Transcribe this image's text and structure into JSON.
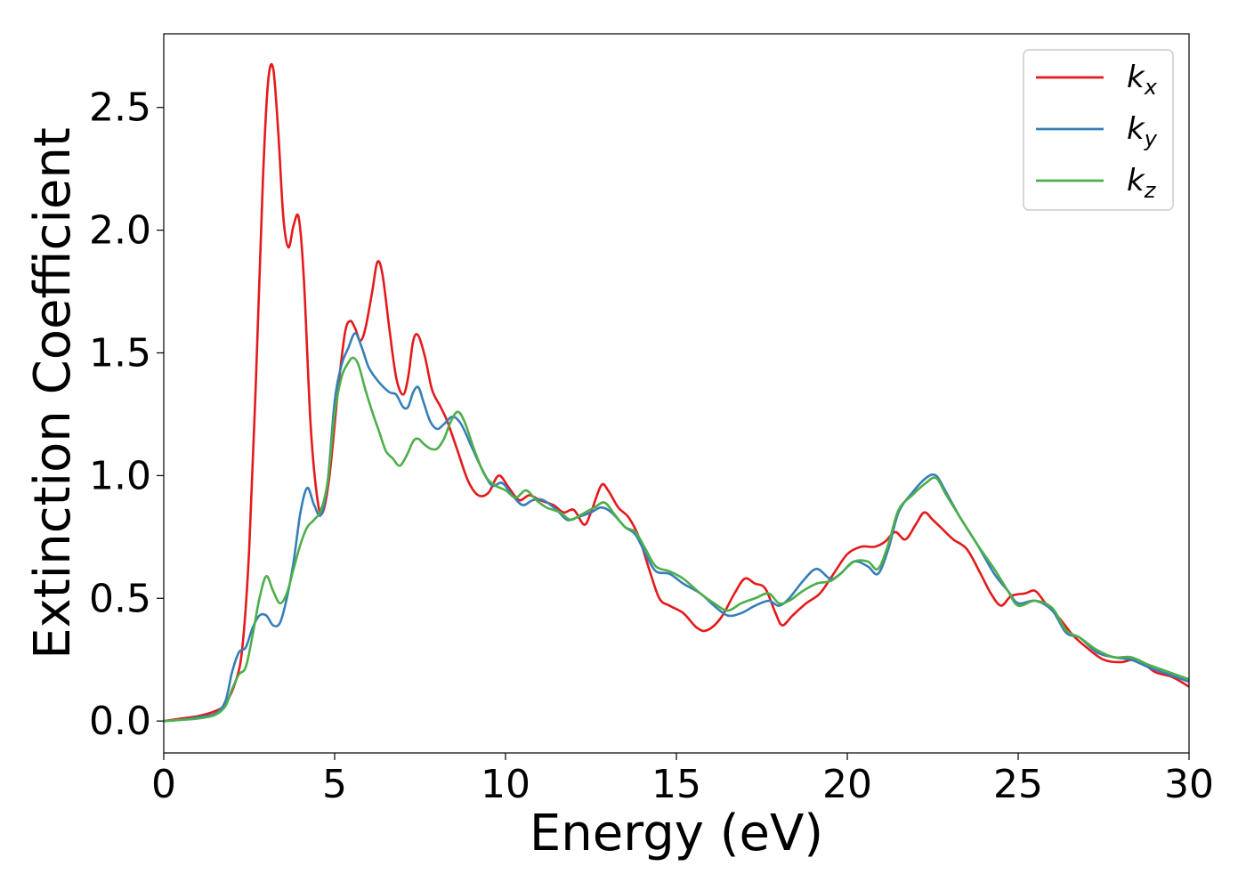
{
  "chart_data": {
    "type": "line",
    "xlabel": "Energy (eV)",
    "ylabel": "Extinction Coefficient",
    "xlim": [
      0,
      30
    ],
    "ylim": [
      -0.13,
      2.8
    ],
    "xticks": [
      0,
      5,
      10,
      15,
      20,
      25,
      30
    ],
    "xtick_labels": [
      "0",
      "5",
      "10",
      "15",
      "20",
      "25",
      "30"
    ],
    "yticks": [
      0.0,
      0.5,
      1.0,
      1.5,
      2.0,
      2.5
    ],
    "ytick_labels": [
      "0.0",
      "0.5",
      "1.0",
      "1.5",
      "2.0",
      "2.5"
    ],
    "grid": false,
    "legend_position": "top-right",
    "series": [
      {
        "name": "k_x",
        "label_main": "k",
        "label_sub": "x",
        "color": "#e41a1c",
        "points": [
          [
            0,
            0
          ],
          [
            0.5,
            0.01
          ],
          [
            1,
            0.02
          ],
          [
            1.5,
            0.04
          ],
          [
            1.8,
            0.07
          ],
          [
            2.1,
            0.16
          ],
          [
            2.3,
            0.3
          ],
          [
            2.5,
            0.7
          ],
          [
            2.7,
            1.4
          ],
          [
            2.9,
            2.2
          ],
          [
            3.05,
            2.6
          ],
          [
            3.2,
            2.66
          ],
          [
            3.35,
            2.4
          ],
          [
            3.5,
            2.05
          ],
          [
            3.65,
            1.93
          ],
          [
            3.8,
            2.02
          ],
          [
            3.95,
            2.05
          ],
          [
            4.1,
            1.8
          ],
          [
            4.3,
            1.2
          ],
          [
            4.5,
            0.9
          ],
          [
            4.65,
            0.85
          ],
          [
            4.85,
            1.0
          ],
          [
            5.1,
            1.35
          ],
          [
            5.3,
            1.58
          ],
          [
            5.45,
            1.63
          ],
          [
            5.6,
            1.6
          ],
          [
            5.75,
            1.55
          ],
          [
            5.9,
            1.6
          ],
          [
            6.1,
            1.75
          ],
          [
            6.25,
            1.87
          ],
          [
            6.4,
            1.82
          ],
          [
            6.6,
            1.6
          ],
          [
            6.8,
            1.4
          ],
          [
            7.0,
            1.33
          ],
          [
            7.15,
            1.4
          ],
          [
            7.3,
            1.55
          ],
          [
            7.45,
            1.57
          ],
          [
            7.65,
            1.48
          ],
          [
            7.85,
            1.35
          ],
          [
            8.1,
            1.28
          ],
          [
            8.3,
            1.22
          ],
          [
            8.6,
            1.1
          ],
          [
            8.9,
            0.98
          ],
          [
            9.2,
            0.92
          ],
          [
            9.5,
            0.93
          ],
          [
            9.8,
            1.0
          ],
          [
            10.1,
            0.95
          ],
          [
            10.4,
            0.9
          ],
          [
            10.7,
            0.92
          ],
          [
            11.0,
            0.9
          ],
          [
            11.4,
            0.88
          ],
          [
            11.7,
            0.85
          ],
          [
            12.0,
            0.86
          ],
          [
            12.3,
            0.8
          ],
          [
            12.5,
            0.85
          ],
          [
            12.8,
            0.96
          ],
          [
            13.0,
            0.94
          ],
          [
            13.3,
            0.87
          ],
          [
            13.6,
            0.83
          ],
          [
            13.9,
            0.75
          ],
          [
            14.2,
            0.62
          ],
          [
            14.5,
            0.5
          ],
          [
            14.8,
            0.47
          ],
          [
            15.2,
            0.44
          ],
          [
            15.6,
            0.38
          ],
          [
            15.9,
            0.37
          ],
          [
            16.3,
            0.42
          ],
          [
            16.7,
            0.52
          ],
          [
            17.0,
            0.58
          ],
          [
            17.3,
            0.56
          ],
          [
            17.6,
            0.54
          ],
          [
            17.9,
            0.44
          ],
          [
            18.1,
            0.39
          ],
          [
            18.4,
            0.43
          ],
          [
            18.8,
            0.48
          ],
          [
            19.2,
            0.52
          ],
          [
            19.6,
            0.6
          ],
          [
            20.0,
            0.68
          ],
          [
            20.4,
            0.71
          ],
          [
            20.8,
            0.71
          ],
          [
            21.1,
            0.73
          ],
          [
            21.4,
            0.77
          ],
          [
            21.7,
            0.74
          ],
          [
            22.0,
            0.8
          ],
          [
            22.25,
            0.85
          ],
          [
            22.5,
            0.82
          ],
          [
            22.8,
            0.78
          ],
          [
            23.1,
            0.74
          ],
          [
            23.5,
            0.7
          ],
          [
            23.9,
            0.6
          ],
          [
            24.2,
            0.52
          ],
          [
            24.5,
            0.47
          ],
          [
            24.8,
            0.51
          ],
          [
            25.2,
            0.52
          ],
          [
            25.5,
            0.53
          ],
          [
            25.8,
            0.48
          ],
          [
            26.2,
            0.42
          ],
          [
            26.6,
            0.35
          ],
          [
            27.0,
            0.3
          ],
          [
            27.5,
            0.25
          ],
          [
            28.0,
            0.24
          ],
          [
            28.5,
            0.25
          ],
          [
            29.0,
            0.2
          ],
          [
            29.5,
            0.18
          ],
          [
            30.0,
            0.14
          ]
        ]
      },
      {
        "name": "k_y",
        "label_main": "k",
        "label_sub": "y",
        "color": "#377eb8",
        "points": [
          [
            0,
            0
          ],
          [
            0.5,
            0.005
          ],
          [
            1,
            0.015
          ],
          [
            1.5,
            0.03
          ],
          [
            1.8,
            0.08
          ],
          [
            2.0,
            0.2
          ],
          [
            2.2,
            0.28
          ],
          [
            2.4,
            0.3
          ],
          [
            2.6,
            0.38
          ],
          [
            2.8,
            0.43
          ],
          [
            3.0,
            0.43
          ],
          [
            3.2,
            0.39
          ],
          [
            3.4,
            0.4
          ],
          [
            3.6,
            0.5
          ],
          [
            3.8,
            0.65
          ],
          [
            4.0,
            0.85
          ],
          [
            4.2,
            0.95
          ],
          [
            4.4,
            0.88
          ],
          [
            4.6,
            0.84
          ],
          [
            4.8,
            0.98
          ],
          [
            5.0,
            1.3
          ],
          [
            5.2,
            1.45
          ],
          [
            5.4,
            1.52
          ],
          [
            5.6,
            1.58
          ],
          [
            5.8,
            1.52
          ],
          [
            6.0,
            1.44
          ],
          [
            6.3,
            1.38
          ],
          [
            6.6,
            1.34
          ],
          [
            6.8,
            1.33
          ],
          [
            7.0,
            1.28
          ],
          [
            7.15,
            1.28
          ],
          [
            7.3,
            1.34
          ],
          [
            7.45,
            1.36
          ],
          [
            7.6,
            1.3
          ],
          [
            7.8,
            1.22
          ],
          [
            8.0,
            1.19
          ],
          [
            8.2,
            1.21
          ],
          [
            8.45,
            1.24
          ],
          [
            8.7,
            1.21
          ],
          [
            9.0,
            1.12
          ],
          [
            9.3,
            1.03
          ],
          [
            9.6,
            0.96
          ],
          [
            9.9,
            0.97
          ],
          [
            10.2,
            0.92
          ],
          [
            10.5,
            0.88
          ],
          [
            10.8,
            0.9
          ],
          [
            11.1,
            0.9
          ],
          [
            11.5,
            0.86
          ],
          [
            11.8,
            0.82
          ],
          [
            12.1,
            0.83
          ],
          [
            12.5,
            0.85
          ],
          [
            12.8,
            0.87
          ],
          [
            13.1,
            0.85
          ],
          [
            13.5,
            0.79
          ],
          [
            13.8,
            0.76
          ],
          [
            14.1,
            0.68
          ],
          [
            14.4,
            0.61
          ],
          [
            14.8,
            0.6
          ],
          [
            15.2,
            0.56
          ],
          [
            15.7,
            0.52
          ],
          [
            16.1,
            0.47
          ],
          [
            16.5,
            0.43
          ],
          [
            16.9,
            0.44
          ],
          [
            17.3,
            0.47
          ],
          [
            17.7,
            0.49
          ],
          [
            18.0,
            0.47
          ],
          [
            18.3,
            0.5
          ],
          [
            18.7,
            0.57
          ],
          [
            19.1,
            0.62
          ],
          [
            19.5,
            0.58
          ],
          [
            19.8,
            0.6
          ],
          [
            20.2,
            0.65
          ],
          [
            20.6,
            0.63
          ],
          [
            20.9,
            0.6
          ],
          [
            21.2,
            0.7
          ],
          [
            21.5,
            0.85
          ],
          [
            21.9,
            0.93
          ],
          [
            22.3,
            0.99
          ],
          [
            22.6,
            1.0
          ],
          [
            22.9,
            0.93
          ],
          [
            23.3,
            0.83
          ],
          [
            23.8,
            0.72
          ],
          [
            24.3,
            0.6
          ],
          [
            24.7,
            0.53
          ],
          [
            25.0,
            0.48
          ],
          [
            25.5,
            0.49
          ],
          [
            26.0,
            0.45
          ],
          [
            26.4,
            0.36
          ],
          [
            26.8,
            0.34
          ],
          [
            27.3,
            0.28
          ],
          [
            27.8,
            0.26
          ],
          [
            28.3,
            0.25
          ],
          [
            28.8,
            0.22
          ],
          [
            29.4,
            0.19
          ],
          [
            30.0,
            0.16
          ]
        ]
      },
      {
        "name": "k_z",
        "label_main": "k",
        "label_sub": "z",
        "color": "#4daf4a",
        "points": [
          [
            0,
            0
          ],
          [
            0.5,
            0.005
          ],
          [
            1,
            0.01
          ],
          [
            1.5,
            0.025
          ],
          [
            1.8,
            0.06
          ],
          [
            2.0,
            0.13
          ],
          [
            2.2,
            0.19
          ],
          [
            2.4,
            0.22
          ],
          [
            2.6,
            0.35
          ],
          [
            2.8,
            0.5
          ],
          [
            3.0,
            0.59
          ],
          [
            3.2,
            0.53
          ],
          [
            3.4,
            0.48
          ],
          [
            3.6,
            0.52
          ],
          [
            3.8,
            0.62
          ],
          [
            4.0,
            0.72
          ],
          [
            4.2,
            0.79
          ],
          [
            4.4,
            0.82
          ],
          [
            4.6,
            0.86
          ],
          [
            4.8,
            0.98
          ],
          [
            5.0,
            1.25
          ],
          [
            5.2,
            1.4
          ],
          [
            5.4,
            1.46
          ],
          [
            5.55,
            1.48
          ],
          [
            5.7,
            1.45
          ],
          [
            5.9,
            1.35
          ],
          [
            6.1,
            1.26
          ],
          [
            6.3,
            1.18
          ],
          [
            6.5,
            1.1
          ],
          [
            6.7,
            1.07
          ],
          [
            6.9,
            1.04
          ],
          [
            7.1,
            1.08
          ],
          [
            7.3,
            1.14
          ],
          [
            7.45,
            1.15
          ],
          [
            7.6,
            1.13
          ],
          [
            7.8,
            1.11
          ],
          [
            8.0,
            1.11
          ],
          [
            8.2,
            1.15
          ],
          [
            8.4,
            1.22
          ],
          [
            8.6,
            1.26
          ],
          [
            8.8,
            1.22
          ],
          [
            9.1,
            1.1
          ],
          [
            9.4,
            1.0
          ],
          [
            9.7,
            0.96
          ],
          [
            10.0,
            0.94
          ],
          [
            10.3,
            0.91
          ],
          [
            10.6,
            0.94
          ],
          [
            10.9,
            0.9
          ],
          [
            11.2,
            0.87
          ],
          [
            11.6,
            0.85
          ],
          [
            11.9,
            0.82
          ],
          [
            12.2,
            0.84
          ],
          [
            12.6,
            0.87
          ],
          [
            12.9,
            0.89
          ],
          [
            13.2,
            0.84
          ],
          [
            13.5,
            0.79
          ],
          [
            13.8,
            0.77
          ],
          [
            14.1,
            0.7
          ],
          [
            14.4,
            0.63
          ],
          [
            14.8,
            0.61
          ],
          [
            15.2,
            0.58
          ],
          [
            15.7,
            0.52
          ],
          [
            16.1,
            0.48
          ],
          [
            16.5,
            0.45
          ],
          [
            16.9,
            0.48
          ],
          [
            17.3,
            0.5
          ],
          [
            17.7,
            0.52
          ],
          [
            18.0,
            0.48
          ],
          [
            18.3,
            0.49
          ],
          [
            18.7,
            0.53
          ],
          [
            19.1,
            0.56
          ],
          [
            19.5,
            0.57
          ],
          [
            19.8,
            0.6
          ],
          [
            20.2,
            0.65
          ],
          [
            20.6,
            0.65
          ],
          [
            20.9,
            0.62
          ],
          [
            21.2,
            0.72
          ],
          [
            21.5,
            0.86
          ],
          [
            21.9,
            0.92
          ],
          [
            22.3,
            0.97
          ],
          [
            22.6,
            0.99
          ],
          [
            22.9,
            0.92
          ],
          [
            23.3,
            0.83
          ],
          [
            23.8,
            0.72
          ],
          [
            24.3,
            0.62
          ],
          [
            24.7,
            0.53
          ],
          [
            25.0,
            0.47
          ],
          [
            25.5,
            0.49
          ],
          [
            26.0,
            0.46
          ],
          [
            26.4,
            0.37
          ],
          [
            26.8,
            0.34
          ],
          [
            27.3,
            0.29
          ],
          [
            27.8,
            0.26
          ],
          [
            28.3,
            0.26
          ],
          [
            28.8,
            0.23
          ],
          [
            29.4,
            0.2
          ],
          [
            30.0,
            0.17
          ]
        ]
      }
    ]
  }
}
